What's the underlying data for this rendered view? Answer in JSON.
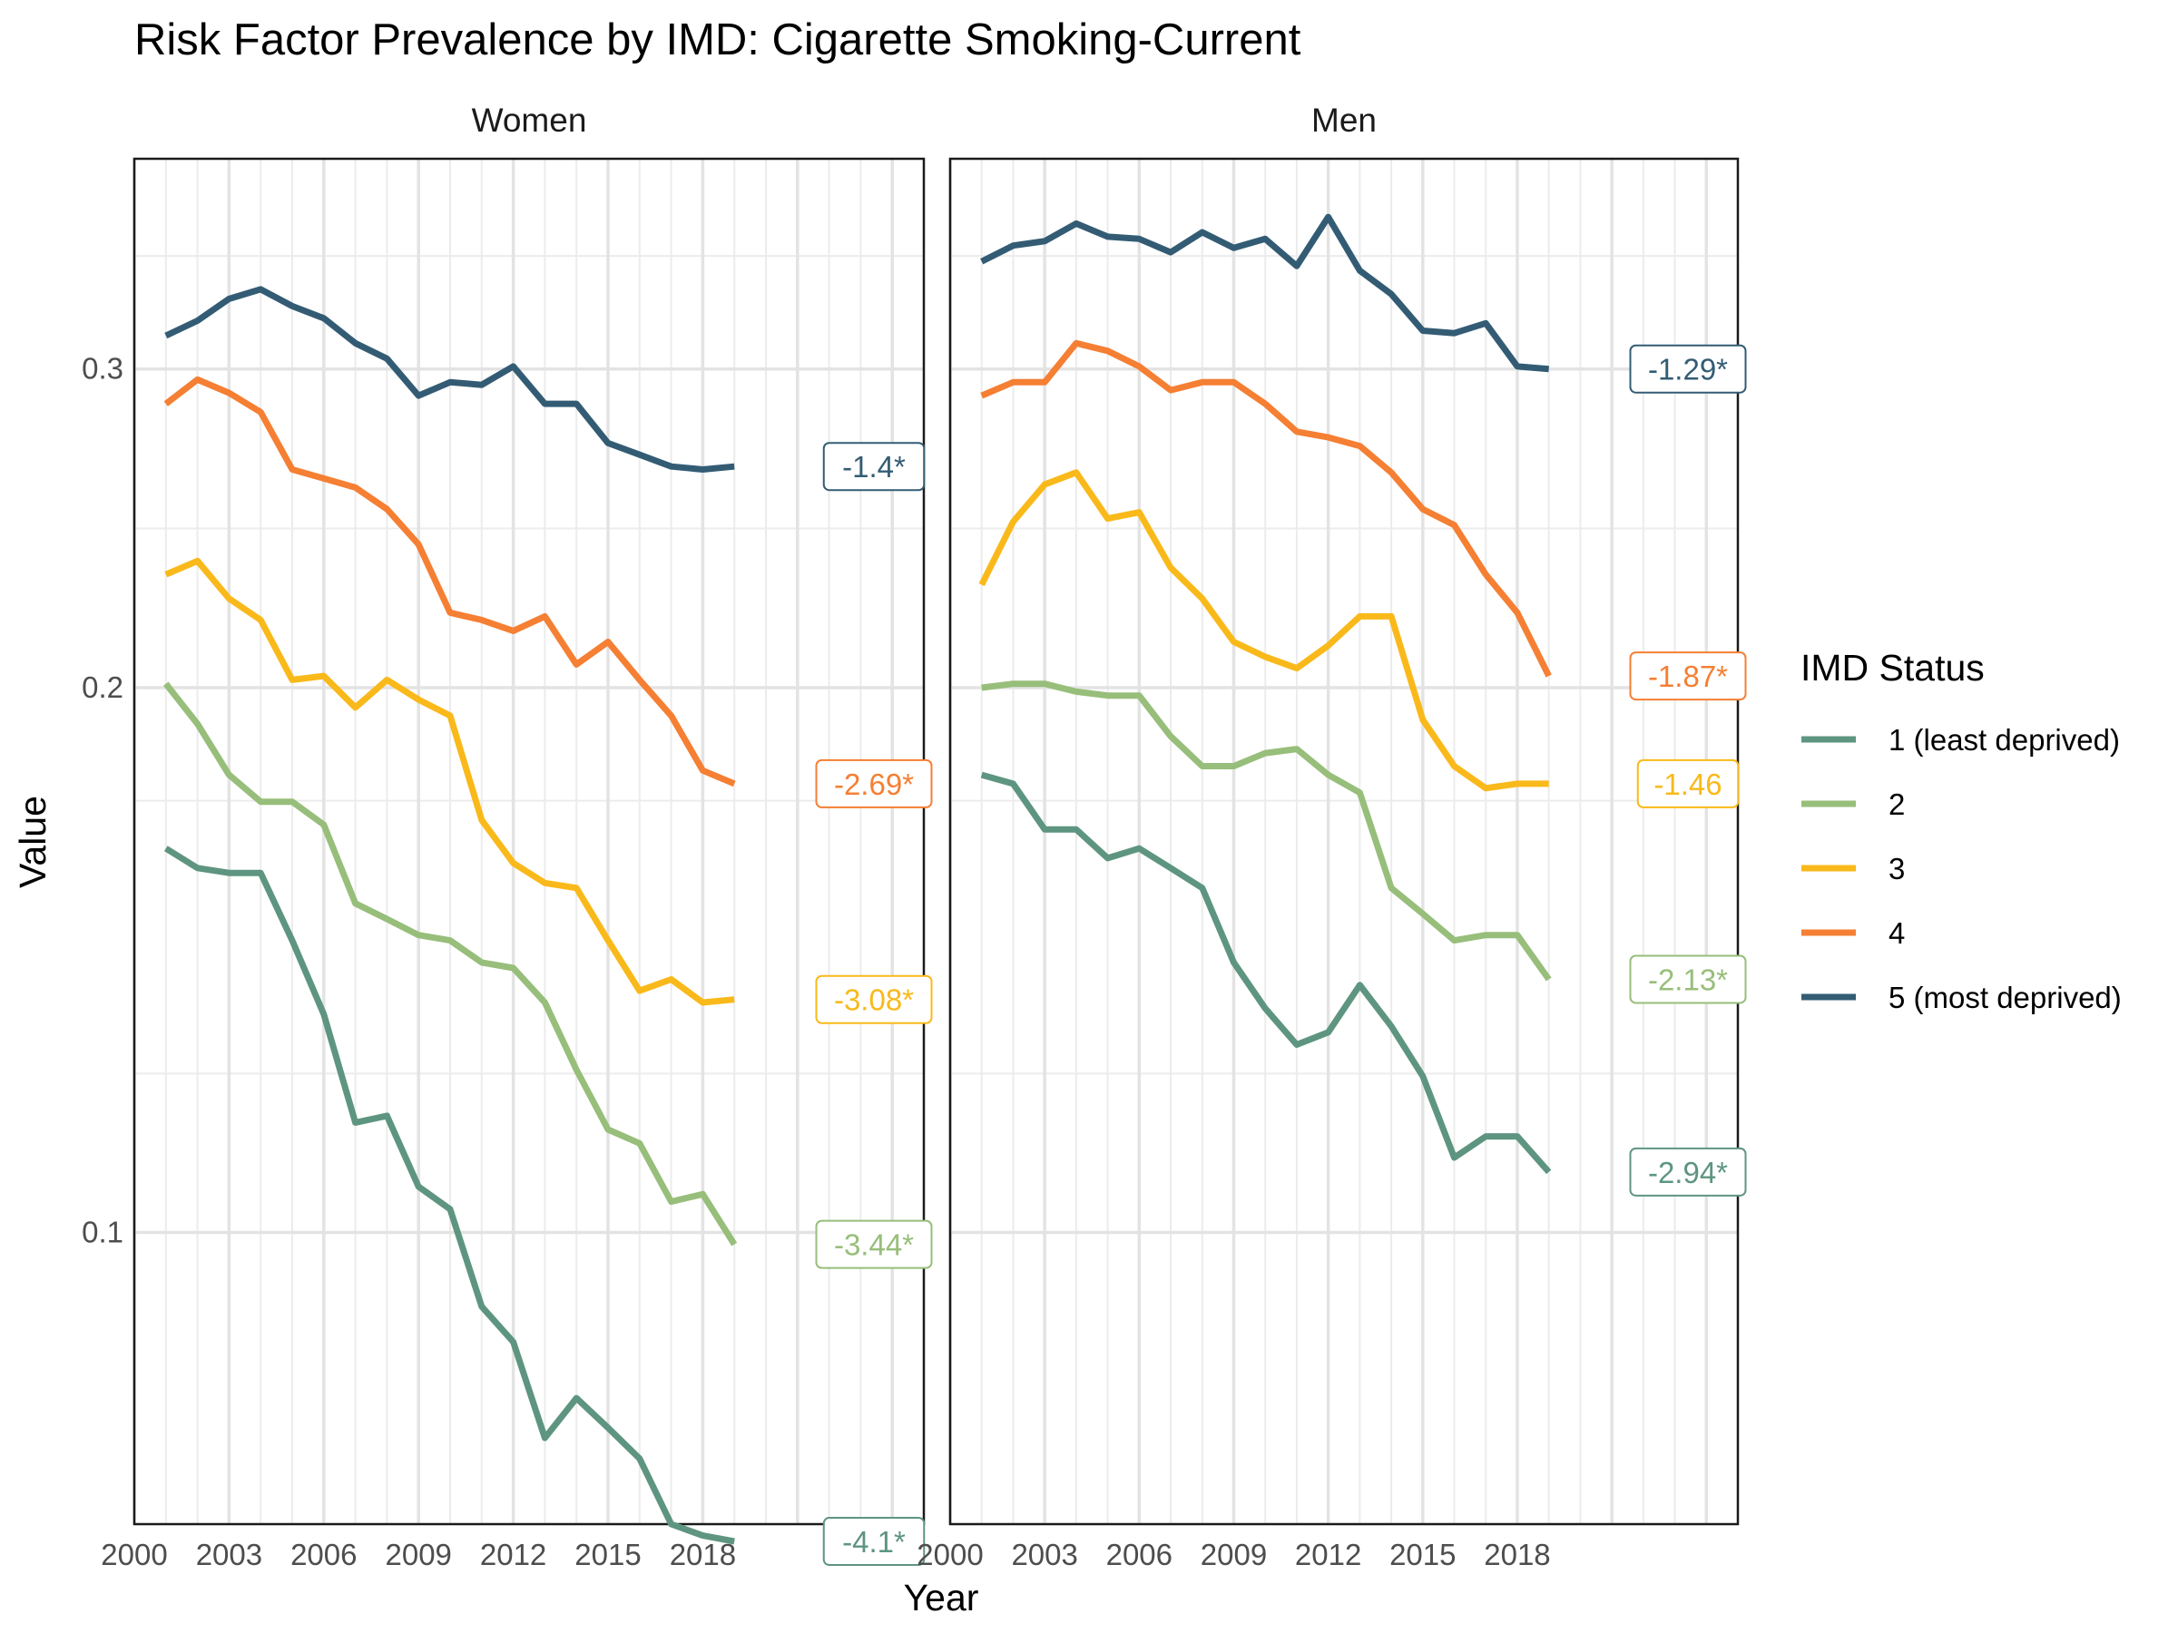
{
  "chart_data": {
    "type": "line",
    "title": "Risk Factor Prevalence by IMD: Cigarette Smoking-Current",
    "xlabel": "Year",
    "ylabel": "Value",
    "y_scale": "log",
    "x_ticks": [
      2000,
      2003,
      2006,
      2009,
      2012,
      2015,
      2018
    ],
    "y_ticks": [
      0.1,
      0.2,
      0.3
    ],
    "xlim": [
      2000,
      2025
    ],
    "ylim": [
      0.069,
      0.392
    ],
    "grid": true,
    "legend": {
      "title": "IMD Status",
      "position": "right",
      "entries": [
        "1 (least deprived)",
        "2",
        "3",
        "4",
        "5 (most deprived)"
      ]
    },
    "colors": {
      "1 (least deprived)": "#5E9580",
      "2": "#97BE7A",
      "3": "#F9B91A",
      "4": "#F57F33",
      "5 (most deprived)": "#335C74"
    },
    "years": [
      2001,
      2002,
      2003,
      2004,
      2005,
      2006,
      2007,
      2008,
      2009,
      2010,
      2011,
      2012,
      2013,
      2014,
      2015,
      2016,
      2017,
      2018,
      2019
    ],
    "panels": [
      {
        "name": "Women",
        "series": [
          {
            "name": "1 (least deprived)",
            "values": [
              0.163,
              0.159,
              0.158,
              0.158,
              0.145,
              0.132,
              0.115,
              0.116,
              0.106,
              0.103,
              0.091,
              0.087,
              0.077,
              0.081,
              0.078,
              0.075,
              0.069,
              0.068,
              0.0675
            ],
            "label": "-4.1*"
          },
          {
            "name": "2",
            "values": [
              0.201,
              0.191,
              0.179,
              0.173,
              0.173,
              0.168,
              0.152,
              0.149,
              0.146,
              0.145,
              0.141,
              0.14,
              0.134,
              0.123,
              0.114,
              0.112,
              0.104,
              0.105,
              0.0985
            ],
            "label": "-3.44*"
          },
          {
            "name": "3",
            "values": [
              0.231,
              0.235,
              0.224,
              0.218,
              0.202,
              0.203,
              0.195,
              0.202,
              0.197,
              0.193,
              0.169,
              0.16,
              0.156,
              0.155,
              0.145,
              0.136,
              0.138,
              0.134,
              0.1345
            ],
            "label": "-3.08*"
          },
          {
            "name": "4",
            "values": [
              0.287,
              0.296,
              0.291,
              0.284,
              0.264,
              0.261,
              0.258,
              0.251,
              0.24,
              0.22,
              0.218,
              0.215,
              0.219,
              0.206,
              0.212,
              0.202,
              0.193,
              0.18,
              0.177
            ],
            "label": "-2.69*"
          },
          {
            "name": "5 (most deprived)",
            "values": [
              0.313,
              0.319,
              0.328,
              0.332,
              0.325,
              0.32,
              0.31,
              0.304,
              0.29,
              0.295,
              0.294,
              0.301,
              0.287,
              0.287,
              0.273,
              0.269,
              0.265,
              0.264,
              0.265
            ],
            "label": "-1.4*"
          }
        ]
      },
      {
        "name": "Men",
        "series": [
          {
            "name": "1 (least deprived)",
            "values": [
              0.179,
              0.177,
              0.167,
              0.167,
              0.161,
              0.163,
              0.159,
              0.155,
              0.141,
              0.133,
              0.127,
              0.129,
              0.137,
              0.13,
              0.122,
              0.11,
              0.113,
              0.113,
              0.108
            ],
            "label": "-2.94*"
          },
          {
            "name": "2",
            "values": [
              0.2,
              0.201,
              0.201,
              0.199,
              0.198,
              0.198,
              0.188,
              0.181,
              0.181,
              0.184,
              0.185,
              0.179,
              0.175,
              0.155,
              0.15,
              0.145,
              0.146,
              0.146,
              0.138
            ],
            "label": "-2.13*"
          },
          {
            "name": "3",
            "values": [
              0.228,
              0.247,
              0.259,
              0.263,
              0.248,
              0.25,
              0.233,
              0.224,
              0.212,
              0.208,
              0.205,
              0.211,
              0.219,
              0.219,
              0.192,
              0.181,
              0.176,
              0.177,
              0.177
            ],
            "label": "-1.46"
          },
          {
            "name": "4",
            "values": [
              0.29,
              0.295,
              0.295,
              0.31,
              0.307,
              0.301,
              0.292,
              0.295,
              0.295,
              0.287,
              0.277,
              0.275,
              0.272,
              0.263,
              0.251,
              0.246,
              0.231,
              0.22,
              0.203
            ],
            "label": "-1.87*"
          },
          {
            "name": "5 (most deprived)",
            "values": [
              0.344,
              0.351,
              0.353,
              0.361,
              0.355,
              0.354,
              0.348,
              0.357,
              0.35,
              0.354,
              0.342,
              0.364,
              0.34,
              0.33,
              0.315,
              0.314,
              0.318,
              0.301,
              0.3
            ],
            "label": "-1.29*"
          }
        ]
      }
    ]
  }
}
